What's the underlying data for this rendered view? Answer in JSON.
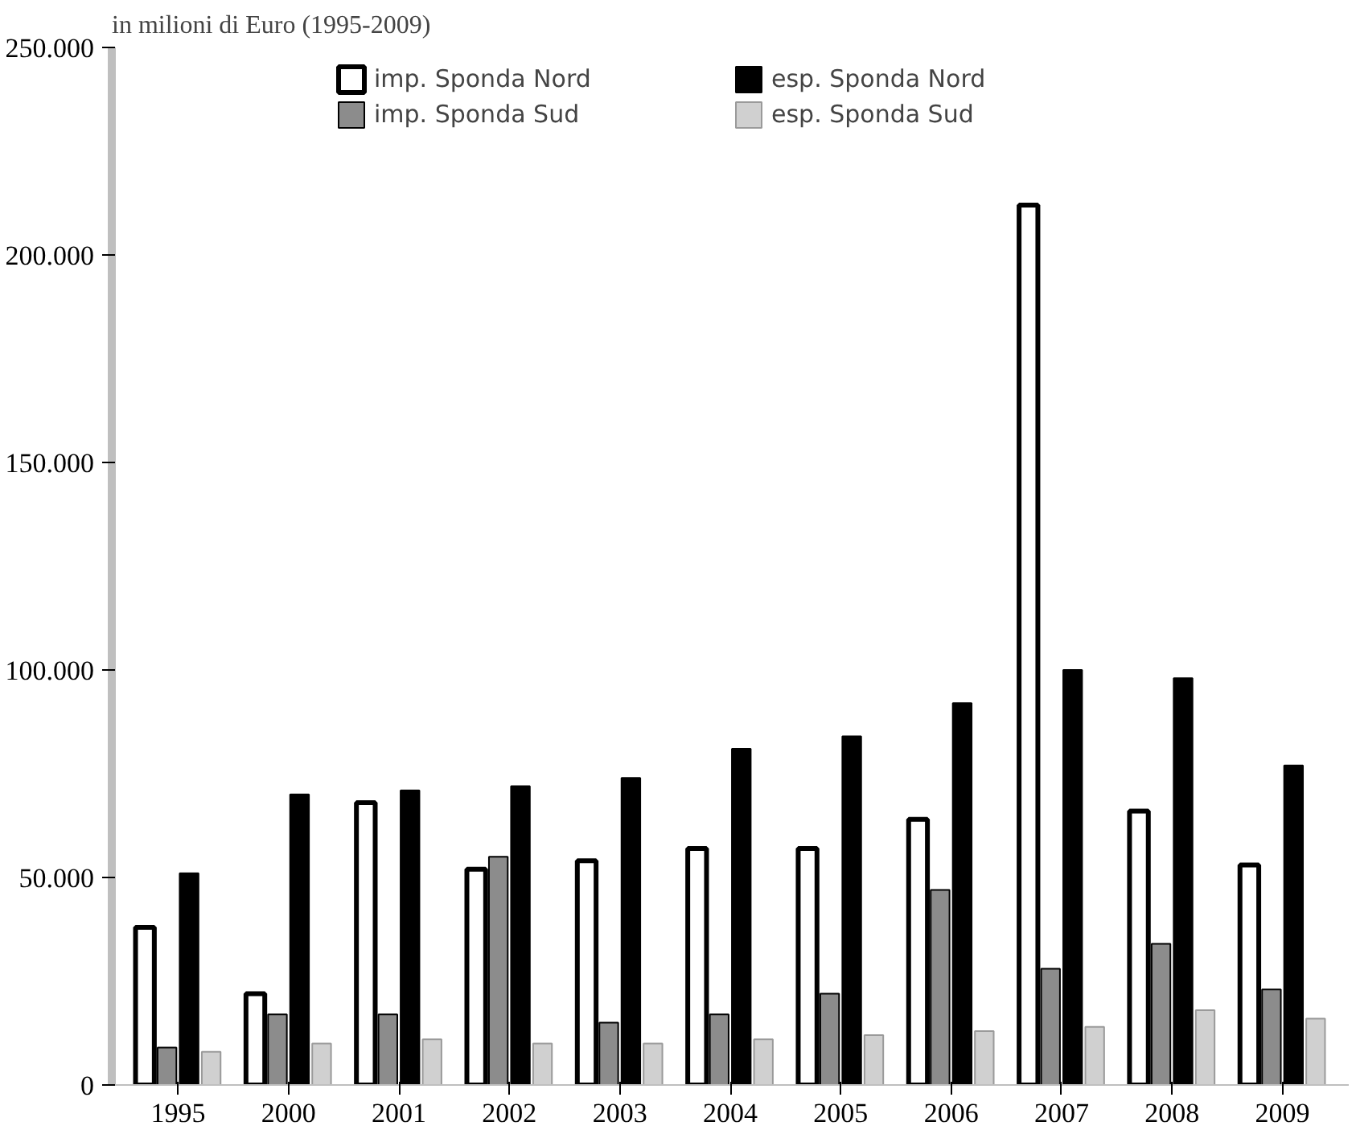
{
  "chart_data": {
    "type": "bar",
    "title": "in milioni di Euro (1995-2009)",
    "categories": [
      "1995",
      "2000",
      "2001",
      "2002",
      "2003",
      "2004",
      "2005",
      "2006",
      "2007",
      "2008",
      "2009"
    ],
    "series": [
      {
        "name": "imp. Sponda Nord",
        "color": "#ffffff",
        "values": [
          38000,
          22000,
          68000,
          52000,
          54000,
          57000,
          57000,
          64000,
          212000,
          66000,
          53000
        ]
      },
      {
        "name": "imp. Sponda Sud",
        "color": "#8c8c8c",
        "values": [
          9000,
          17000,
          17000,
          55000,
          15000,
          17000,
          22000,
          47000,
          28000,
          34000,
          23000
        ]
      },
      {
        "name": "esp. Sponda Nord",
        "color": "#000000",
        "values": [
          51000,
          70000,
          71000,
          72000,
          74000,
          81000,
          84000,
          92000,
          100000,
          98000,
          77000
        ]
      },
      {
        "name": "esp. Sponda Sud",
        "color": "#d0d0d0",
        "values": [
          8000,
          10000,
          11000,
          10000,
          10000,
          11000,
          12000,
          13000,
          14000,
          18000,
          16000
        ]
      }
    ],
    "ylim": [
      0,
      250000
    ],
    "yticks": [
      0,
      {
        "value": 50000,
        "label": "50.000"
      },
      {
        "value": 100000,
        "label": "100.000"
      },
      {
        "value": 150000,
        "label": "150.000"
      },
      {
        "value": 200000,
        "label": "200.000"
      },
      {
        "value": 250000,
        "label": "250.000"
      }
    ],
    "grid": false,
    "legend": "top"
  }
}
